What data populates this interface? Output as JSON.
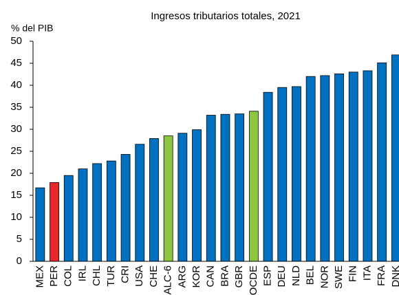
{
  "chart_data": {
    "type": "bar",
    "title": "Ingresos tributarios totales, 2021",
    "ylabel": "% del PIB",
    "categories": [
      "MEX",
      "PER",
      "COL",
      "IRL",
      "CHL",
      "TUR",
      "CRI",
      "USA",
      "CHE",
      "ALC-6",
      "ARG",
      "KOR",
      "CAN",
      "BRA",
      "GBR",
      "OCDE",
      "ESP",
      "DEU",
      "NLD",
      "BEL",
      "NOR",
      "SWE",
      "FIN",
      "ITA",
      "FRA",
      "DNK"
    ],
    "values": [
      16.7,
      17.9,
      19.5,
      21.0,
      22.2,
      22.8,
      24.3,
      26.6,
      27.9,
      28.5,
      29.1,
      29.9,
      33.2,
      33.4,
      33.5,
      34.1,
      38.4,
      39.5,
      39.7,
      42.0,
      42.2,
      42.6,
      43.0,
      43.3,
      45.1,
      46.9
    ],
    "colors": [
      "#0070c0",
      "#e8262b",
      "#0070c0",
      "#0070c0",
      "#0070c0",
      "#0070c0",
      "#0070c0",
      "#0070c0",
      "#0070c0",
      "#8dc63f",
      "#0070c0",
      "#0070c0",
      "#0070c0",
      "#0070c0",
      "#0070c0",
      "#8dc63f",
      "#0070c0",
      "#0070c0",
      "#0070c0",
      "#0070c0",
      "#0070c0",
      "#0070c0",
      "#0070c0",
      "#0070c0",
      "#0070c0",
      "#0070c0"
    ],
    "ylim": [
      0,
      50
    ],
    "yticks": [
      0,
      5,
      10,
      15,
      20,
      25,
      30,
      35,
      40,
      45,
      50
    ],
    "grid": false
  }
}
